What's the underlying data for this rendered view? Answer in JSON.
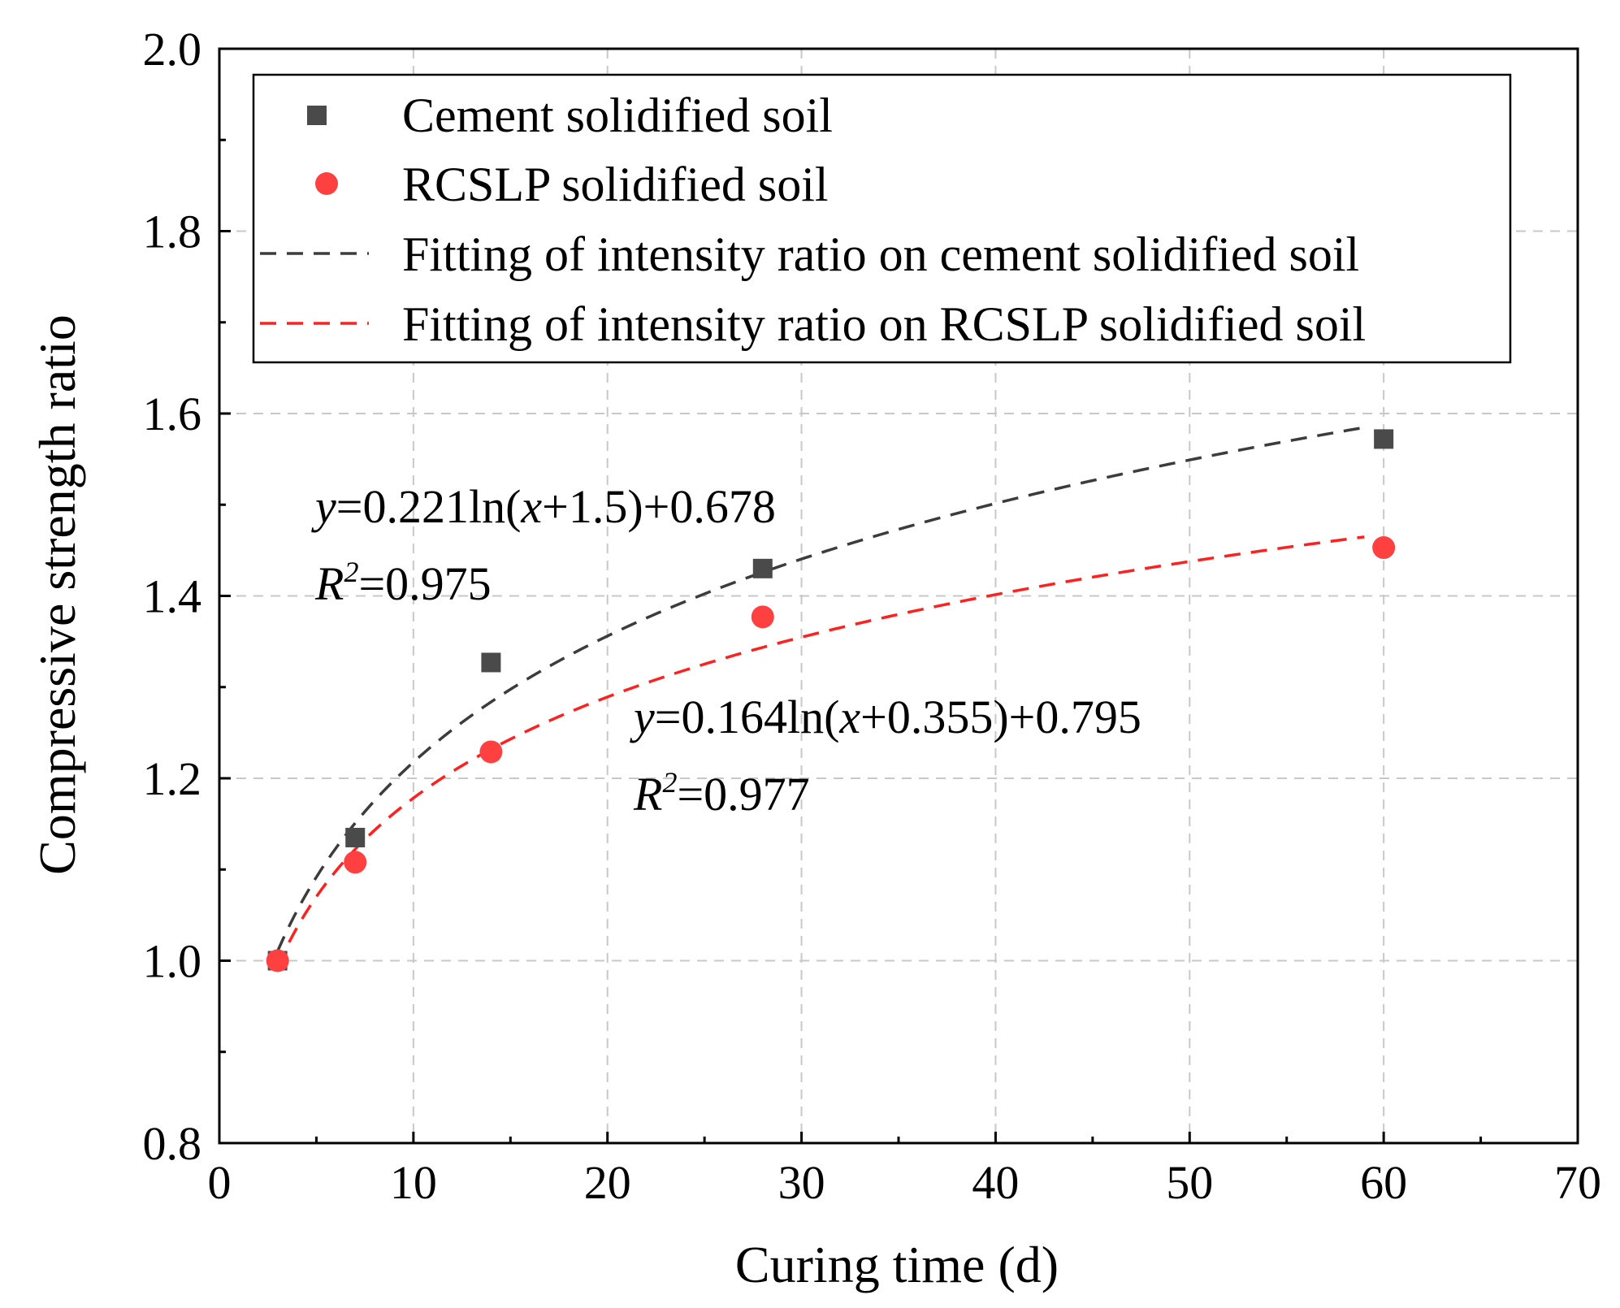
{
  "chart_data": {
    "type": "scatter",
    "xlabel": "Curing time (d)",
    "ylabel": "Compressive strength ratio",
    "xlim": [
      0,
      70
    ],
    "ylim": [
      0.8,
      2.0
    ],
    "xticks": [
      0,
      10,
      20,
      30,
      40,
      50,
      60,
      70
    ],
    "yticks": [
      0.8,
      1.0,
      1.2,
      1.4,
      1.6,
      1.8,
      2.0
    ],
    "xtick_labels": [
      "0",
      "10",
      "20",
      "30",
      "40",
      "50",
      "60",
      "70"
    ],
    "ytick_labels": [
      "0.8",
      "1.0",
      "1.2",
      "1.4",
      "1.6",
      "1.8",
      "2.0"
    ],
    "grid": true,
    "legend_position": "top-right",
    "series": [
      {
        "name": "Cement solidified soil",
        "kind": "points",
        "marker": "square",
        "color": "#4a4a4a",
        "x": [
          3,
          7,
          14,
          28,
          60
        ],
        "y": [
          1.0,
          1.135,
          1.327,
          1.43,
          1.572
        ]
      },
      {
        "name": "RCSLP solidified soil",
        "kind": "points",
        "marker": "circle",
        "color": "#ff4040",
        "x": [
          3,
          7,
          14,
          28,
          60
        ],
        "y": [
          1.0,
          1.108,
          1.229,
          1.377,
          1.453
        ]
      },
      {
        "name": "Fitting of intensity ratio on cement solidified soil",
        "kind": "fit",
        "color": "#3c3c3c",
        "a": 0.221,
        "b": 1.5,
        "c": 0.678,
        "x_range": [
          3,
          59
        ]
      },
      {
        "name": "Fitting of intensity ratio on RCSLP solidified soil",
        "kind": "fit",
        "color": "#ff2020",
        "a": 0.164,
        "b": 0.355,
        "c": 0.795,
        "x_range": [
          3,
          59
        ]
      }
    ],
    "annotations": [
      {
        "eq_y": "y",
        "eq_rest": "=0.221ln(",
        "eq_x": "x",
        "eq_tail": "+1.5)+0.678",
        "r2_label": "R",
        "r2_sup": "2",
        "r2_value": "=0.975"
      },
      {
        "eq_y": "y",
        "eq_rest": "=0.164ln(",
        "eq_x": "x",
        "eq_tail": "+0.355)+0.795",
        "r2_label": "R",
        "r2_sup": "2",
        "r2_value": "=0.977"
      }
    ]
  }
}
